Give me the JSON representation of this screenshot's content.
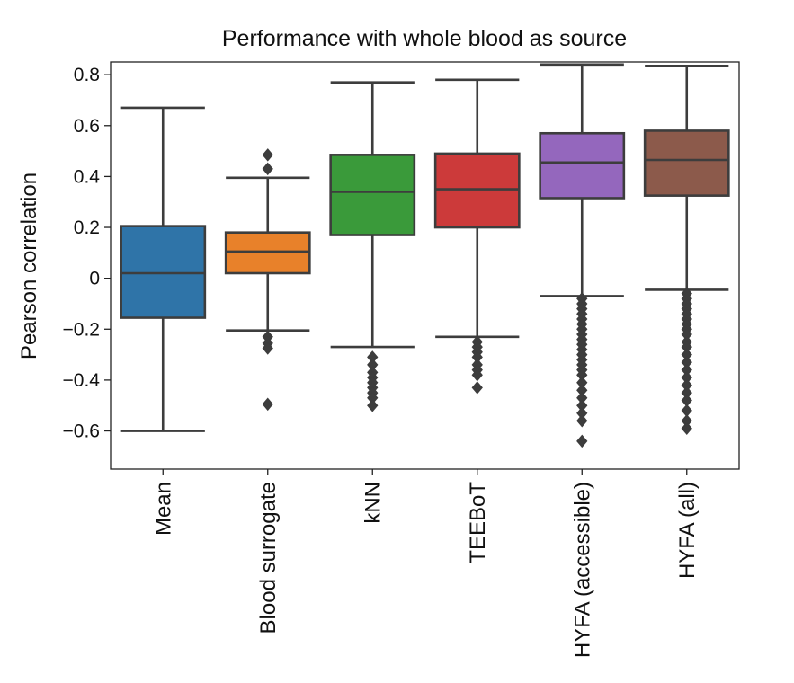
{
  "chart_data": {
    "type": "box",
    "title": "Performance with whole blood as source",
    "ylabel": "Pearson correlation",
    "xlabel": "",
    "ylim": [
      -0.75,
      0.85
    ],
    "yticks": [
      {
        "value": 0.8,
        "label": "0.8"
      },
      {
        "value": 0.6,
        "label": "0.6"
      },
      {
        "value": 0.4,
        "label": "0.4"
      },
      {
        "value": 0.2,
        "label": "0.2"
      },
      {
        "value": 0.0,
        "label": "0"
      },
      {
        "value": -0.2,
        "label": "−0.2"
      },
      {
        "value": -0.4,
        "label": "−0.4"
      },
      {
        "value": -0.6,
        "label": "−0.6"
      }
    ],
    "categories": [
      "Mean",
      "Blood surrogate",
      "kNN",
      "TEEBoT",
      "HYFA (accessible)",
      "HYFA (all)"
    ],
    "boxes": [
      {
        "name": "Mean",
        "color": "#2f74a8",
        "whisker_low": -0.6,
        "q1": -0.155,
        "median": 0.02,
        "q3": 0.205,
        "whisker_high": 0.67,
        "outliers": []
      },
      {
        "name": "Blood surrogate",
        "color": "#e8812a",
        "whisker_low": -0.205,
        "q1": 0.02,
        "median": 0.105,
        "q3": 0.18,
        "whisker_high": 0.395,
        "outliers": [
          0.485,
          0.43,
          -0.23,
          -0.255,
          -0.275,
          -0.495
        ]
      },
      {
        "name": "kNN",
        "color": "#3a9a3a",
        "whisker_low": -0.27,
        "q1": 0.17,
        "median": 0.34,
        "q3": 0.485,
        "whisker_high": 0.77,
        "outliers": [
          -0.31,
          -0.34,
          -0.37,
          -0.39,
          -0.41,
          -0.43,
          -0.45,
          -0.47,
          -0.5
        ]
      },
      {
        "name": "TEEBoT",
        "color": "#cc3a3a",
        "whisker_low": -0.23,
        "q1": 0.2,
        "median": 0.35,
        "q3": 0.49,
        "whisker_high": 0.78,
        "outliers": [
          -0.25,
          -0.27,
          -0.29,
          -0.31,
          -0.34,
          -0.36,
          -0.38,
          -0.43
        ]
      },
      {
        "name": "HYFA (accessible)",
        "color": "#9467bd",
        "whisker_low": -0.07,
        "q1": 0.315,
        "median": 0.455,
        "q3": 0.57,
        "whisker_high": 0.84,
        "outliers": [
          -0.08,
          -0.1,
          -0.12,
          -0.14,
          -0.16,
          -0.18,
          -0.2,
          -0.22,
          -0.24,
          -0.26,
          -0.28,
          -0.3,
          -0.32,
          -0.34,
          -0.36,
          -0.38,
          -0.41,
          -0.44,
          -0.47,
          -0.5,
          -0.53,
          -0.56,
          -0.64
        ]
      },
      {
        "name": "HYFA (all)",
        "color": "#8c5a4b",
        "whisker_low": -0.045,
        "q1": 0.325,
        "median": 0.465,
        "q3": 0.58,
        "whisker_high": 0.835,
        "outliers": [
          -0.06,
          -0.08,
          -0.1,
          -0.12,
          -0.14,
          -0.16,
          -0.18,
          -0.2,
          -0.22,
          -0.25,
          -0.27,
          -0.3,
          -0.33,
          -0.36,
          -0.39,
          -0.42,
          -0.45,
          -0.48,
          -0.52,
          -0.56,
          -0.59
        ]
      }
    ]
  }
}
